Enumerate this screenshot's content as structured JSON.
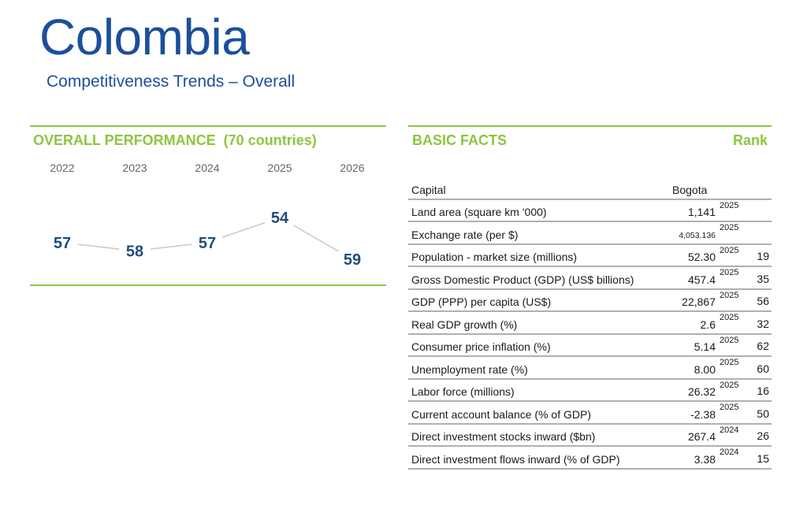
{
  "header": {
    "title": "Colombia",
    "subtitle": "Competitiveness Trends – Overall"
  },
  "performance": {
    "heading": "OVERALL PERFORMANCE  (70 countries)",
    "years": [
      "2022",
      "2023",
      "2024",
      "2025",
      "2026"
    ],
    "ranks": [
      57,
      58,
      57,
      54,
      59
    ]
  },
  "chart_data": {
    "type": "line",
    "title": "OVERALL PERFORMANCE  (70 countries)",
    "categories": [
      "2022",
      "2023",
      "2024",
      "2025",
      "2026"
    ],
    "series": [
      {
        "values": [
          57,
          58,
          57,
          54,
          59
        ]
      }
    ],
    "y_inverted": true,
    "grid": false
  },
  "facts": {
    "heading": "BASIC FACTS",
    "rank_heading": "Rank",
    "rows": [
      {
        "label": "Capital",
        "value": "Bogota",
        "year": "",
        "rank": ""
      },
      {
        "label": "Land area (square km '000)",
        "value": "1,141",
        "year": "2025",
        "rank": ""
      },
      {
        "label": "Exchange rate (per $)",
        "value": "4,053.136",
        "year": "2025",
        "rank": ""
      },
      {
        "label": "Population - market size (millions)",
        "value": "52.30",
        "year": "2025",
        "rank": "19"
      },
      {
        "label": "Gross Domestic Product (GDP) (US$ billions)",
        "value": "457.4",
        "year": "2025",
        "rank": "35"
      },
      {
        "label": "GDP (PPP) per capita (US$)",
        "value": "22,867",
        "year": "2025",
        "rank": "56"
      },
      {
        "label": "Real GDP growth (%)",
        "value": "2.6",
        "year": "2025",
        "rank": "32"
      },
      {
        "label": "Consumer price inflation (%)",
        "value": "5.14",
        "year": "2025",
        "rank": "62"
      },
      {
        "label": "Unemployment rate (%)",
        "value": "8.00",
        "year": "2025",
        "rank": "60"
      },
      {
        "label": "Labor force (millions)",
        "value": "26.32",
        "year": "2025",
        "rank": "16"
      },
      {
        "label": "Current account balance (% of GDP)",
        "value": "-2.38",
        "year": "2025",
        "rank": "50"
      },
      {
        "label": "Direct investment stocks inward ($bn)",
        "value": "267.4",
        "year": "2024",
        "rank": "26"
      },
      {
        "label": "Direct investment flows inward (% of GDP)",
        "value": "3.38",
        "year": "2024",
        "rank": "15"
      }
    ]
  },
  "colors": {
    "title_blue": "#1b4f9c",
    "accent_green": "#8cc63f",
    "line_gray": "#c8c8c8",
    "rank_blue": "#1f4e79"
  }
}
